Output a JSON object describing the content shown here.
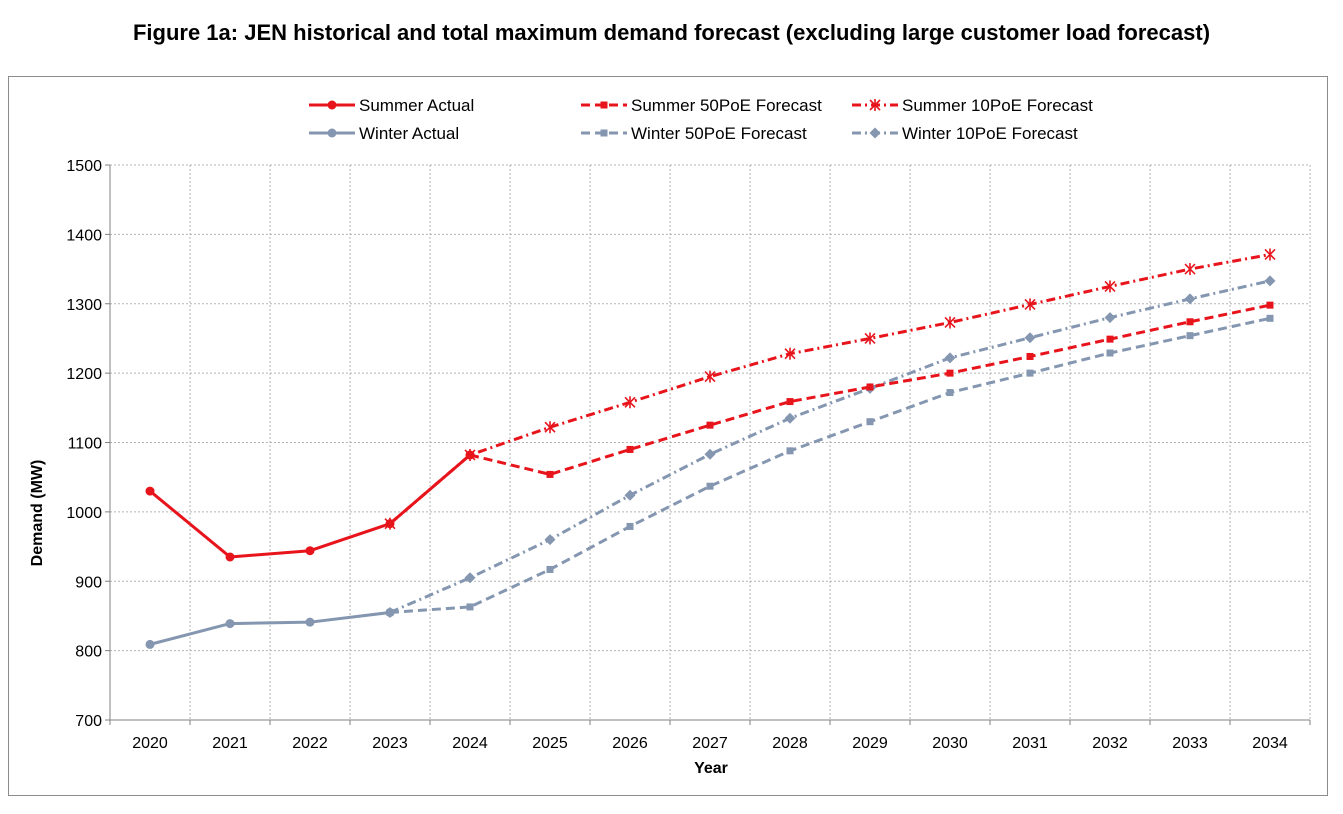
{
  "title": "Figure 1a: JEN historical and total maximum demand forecast (excluding large customer load forecast)",
  "chart_data": {
    "type": "line",
    "title": "Figure 1a: JEN historical and total maximum demand forecast (excluding large customer load forecast)",
    "xlabel": "Year",
    "ylabel": "Demand (MW)",
    "ylim": [
      700,
      1500
    ],
    "yticks": [
      700,
      800,
      900,
      1000,
      1100,
      1200,
      1300,
      1400,
      1500
    ],
    "grid": true,
    "legend_position": "top",
    "categories": [
      "2020",
      "2021",
      "2022",
      "2023",
      "2024",
      "2025",
      "2026",
      "2027",
      "2028",
      "2029",
      "2030",
      "2031",
      "2032",
      "2033",
      "2034"
    ],
    "series": [
      {
        "name": "Summer Actual",
        "color": "#e8141c",
        "style": "solid",
        "marker": "circle",
        "values": [
          1030,
          935,
          944,
          983,
          1082,
          null,
          null,
          null,
          null,
          null,
          null,
          null,
          null,
          null,
          null
        ]
      },
      {
        "name": "Winter Actual",
        "color": "#8496b0",
        "style": "solid",
        "marker": "circle",
        "values": [
          809,
          839,
          841,
          855,
          null,
          null,
          null,
          null,
          null,
          null,
          null,
          null,
          null,
          null,
          null
        ]
      },
      {
        "name": "Summer 50PoE Forecast",
        "color": "#e8141c",
        "style": "dashed",
        "marker": "square",
        "values": [
          null,
          null,
          null,
          null,
          1082,
          1054,
          1090,
          1125,
          1159,
          1180,
          1200,
          1224,
          1249,
          1274,
          1298
        ]
      },
      {
        "name": "Winter 50PoE Forecast",
        "color": "#8496b0",
        "style": "dashed",
        "marker": "square",
        "values": [
          null,
          null,
          null,
          855,
          863,
          917,
          979,
          1037,
          1088,
          1130,
          1172,
          1200,
          1229,
          1254,
          1279
        ]
      },
      {
        "name": "Summer 10PoE Forecast",
        "color": "#e8141c",
        "style": "dashdot",
        "marker": "star",
        "values": [
          null,
          null,
          null,
          983,
          1082,
          1122,
          1158,
          1195,
          1228,
          1250,
          1273,
          1299,
          1325,
          1350,
          1371
        ]
      },
      {
        "name": "Winter 10PoE Forecast",
        "color": "#8496b0",
        "style": "dashdot",
        "marker": "diamond",
        "values": [
          null,
          null,
          null,
          855,
          905,
          960,
          1024,
          1083,
          1135,
          1178,
          1222,
          1251,
          1280,
          1307,
          1333
        ]
      }
    ]
  }
}
